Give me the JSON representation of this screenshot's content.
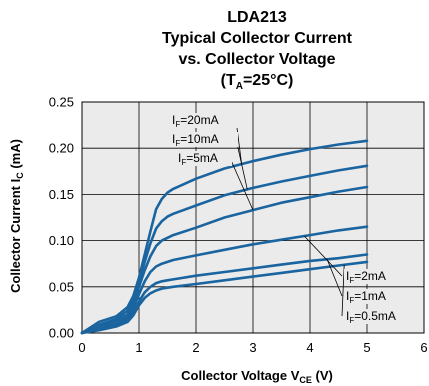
{
  "chart_data": {
    "type": "line",
    "title_lines": [
      "LDA213",
      "Typical Collector Current",
      "vs. Collector Voltage"
    ],
    "title_condition": {
      "main": "T",
      "sub": "A",
      "rest": "=25°C"
    },
    "xlabel": {
      "main": "Collector Voltage V",
      "sub": "CE",
      "rest": " (V)"
    },
    "ylabel": {
      "main": "Collector Current I",
      "sub": "C",
      "rest": " (mA)"
    },
    "xlim": [
      0,
      6
    ],
    "ylim": [
      0,
      0.25
    ],
    "xticks": [
      "0",
      "1",
      "2",
      "3",
      "4",
      "5",
      "6"
    ],
    "yticks": [
      "0.00",
      "0.05",
      "0.10",
      "0.15",
      "0.20",
      "0.25"
    ],
    "grid": true,
    "series_color": "#1a64a0",
    "plot_background": "#ebebeb",
    "series": [
      {
        "name": "IF=20mA",
        "label": {
          "main": "I",
          "sub": "F",
          "rest": "=20mA"
        },
        "x": [
          0,
          0.3,
          0.6,
          0.8,
          0.9,
          1.0,
          1.1,
          1.2,
          1.3,
          1.4,
          1.5,
          1.6,
          2.0,
          2.5,
          3.0,
          3.5,
          4.0,
          4.5,
          5.0
        ],
        "y": [
          0,
          0.012,
          0.018,
          0.028,
          0.04,
          0.06,
          0.085,
          0.11,
          0.134,
          0.145,
          0.152,
          0.156,
          0.167,
          0.178,
          0.186,
          0.193,
          0.199,
          0.204,
          0.208
        ]
      },
      {
        "name": "IF=10mA",
        "label": {
          "main": "I",
          "sub": "F",
          "rest": "=10mA"
        },
        "x": [
          0,
          0.3,
          0.6,
          0.8,
          0.9,
          1.0,
          1.1,
          1.2,
          1.3,
          1.4,
          1.5,
          1.6,
          2.0,
          2.5,
          3.0,
          3.5,
          4.0,
          4.5,
          5.0
        ],
        "y": [
          0,
          0.009,
          0.015,
          0.024,
          0.036,
          0.055,
          0.077,
          0.097,
          0.113,
          0.121,
          0.126,
          0.129,
          0.138,
          0.149,
          0.157,
          0.164,
          0.17,
          0.176,
          0.181
        ]
      },
      {
        "name": "IF=5mA",
        "label": {
          "main": "I",
          "sub": "F",
          "rest": "=5mA"
        },
        "x": [
          0,
          0.3,
          0.6,
          0.8,
          0.9,
          1.0,
          1.1,
          1.2,
          1.3,
          1.4,
          1.5,
          1.6,
          2.0,
          2.5,
          3.0,
          3.5,
          4.0,
          4.5,
          5.0
        ],
        "y": [
          0,
          0.007,
          0.013,
          0.02,
          0.032,
          0.05,
          0.068,
          0.083,
          0.094,
          0.1,
          0.103,
          0.106,
          0.114,
          0.125,
          0.133,
          0.141,
          0.147,
          0.153,
          0.158
        ]
      },
      {
        "name": "IF=2mA",
        "label": {
          "main": "I",
          "sub": "F",
          "rest": "=2mA"
        },
        "x": [
          0,
          0.3,
          0.6,
          0.8,
          0.9,
          1.0,
          1.1,
          1.2,
          1.3,
          1.4,
          1.5,
          1.6,
          2.0,
          2.5,
          3.0,
          3.5,
          4.0,
          4.5,
          5.0
        ],
        "y": [
          0,
          0.005,
          0.01,
          0.017,
          0.027,
          0.042,
          0.056,
          0.066,
          0.072,
          0.075,
          0.077,
          0.079,
          0.084,
          0.09,
          0.096,
          0.101,
          0.106,
          0.111,
          0.115
        ]
      },
      {
        "name": "IF=1mA",
        "label": {
          "main": "I",
          "sub": "F",
          "rest": "=1mA"
        },
        "x": [
          0,
          0.3,
          0.6,
          0.8,
          0.9,
          1.0,
          1.1,
          1.2,
          1.3,
          1.4,
          1.5,
          1.6,
          2.0,
          2.5,
          3.0,
          3.5,
          4.0,
          4.5,
          5.0
        ],
        "y": [
          0,
          0.004,
          0.008,
          0.014,
          0.022,
          0.034,
          0.044,
          0.05,
          0.054,
          0.056,
          0.057,
          0.058,
          0.062,
          0.066,
          0.07,
          0.074,
          0.078,
          0.081,
          0.085
        ]
      },
      {
        "name": "IF=0.5mA",
        "label": {
          "main": "I",
          "sub": "F",
          "rest": "=0.5mA"
        },
        "x": [
          0,
          0.3,
          0.6,
          0.8,
          0.9,
          1.0,
          1.1,
          1.2,
          1.3,
          1.4,
          1.5,
          1.6,
          2.0,
          2.5,
          3.0,
          3.5,
          4.0,
          4.5,
          5.0
        ],
        "y": [
          0,
          0.003,
          0.007,
          0.012,
          0.019,
          0.03,
          0.038,
          0.043,
          0.046,
          0.048,
          0.049,
          0.05,
          0.053,
          0.057,
          0.061,
          0.065,
          0.069,
          0.073,
          0.077
        ]
      }
    ]
  }
}
